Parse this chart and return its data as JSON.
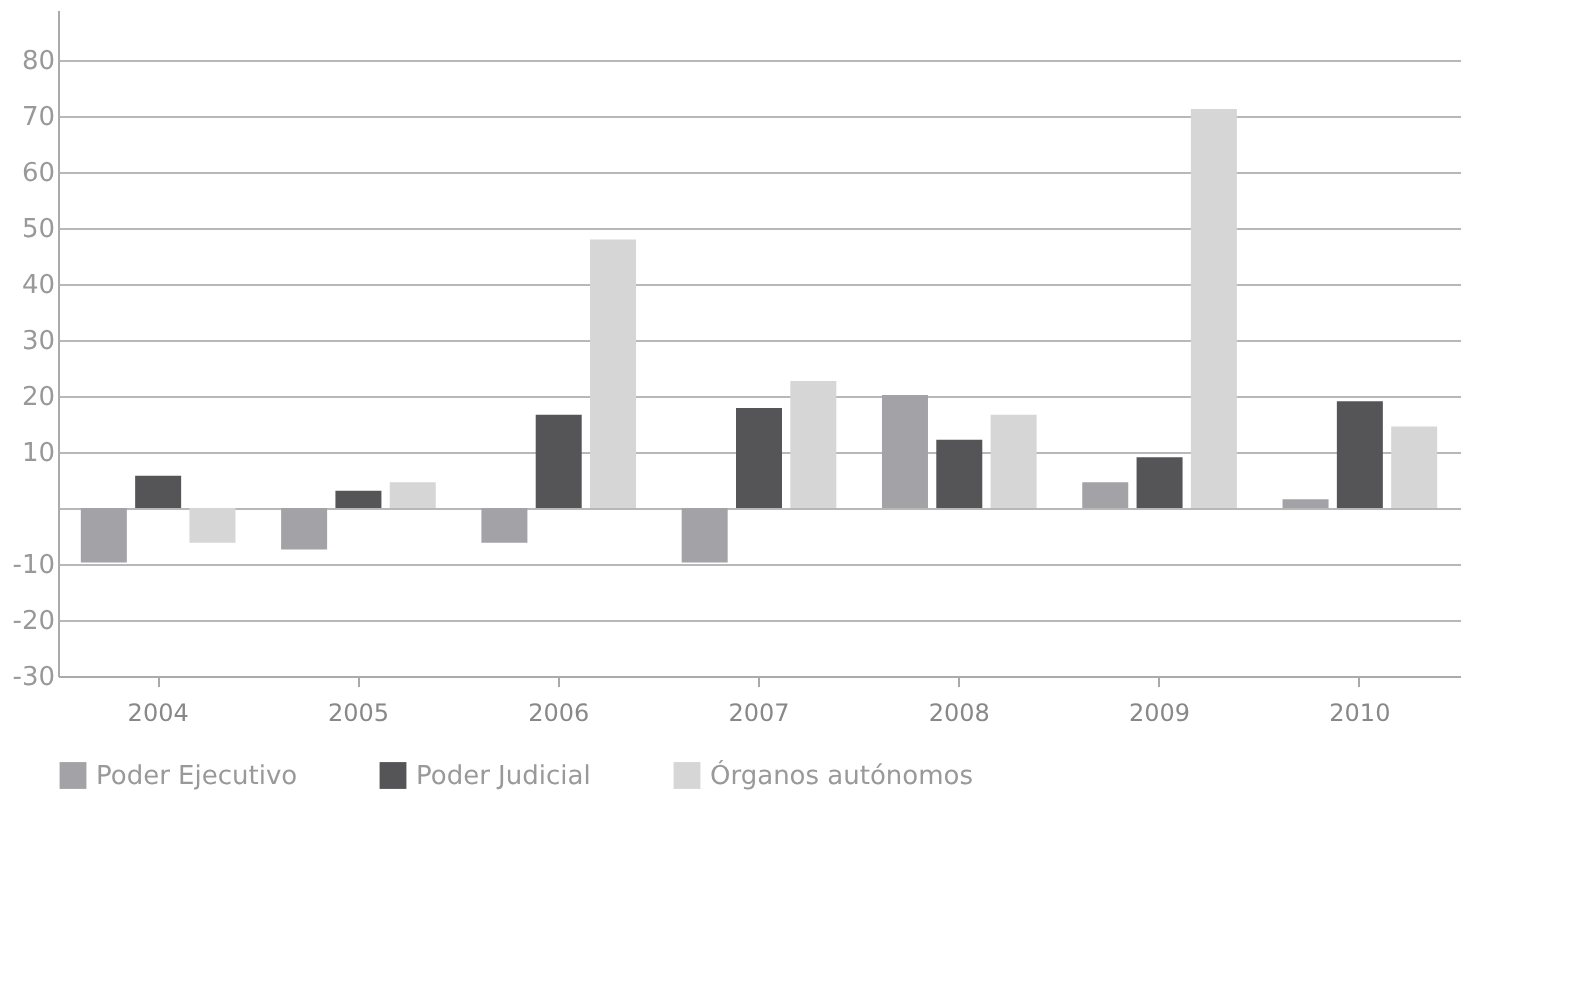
{
  "chart_data": {
    "type": "bar",
    "categories": [
      "2004",
      "2005",
      "2006",
      "2007",
      "2008",
      "2009",
      "2010"
    ],
    "series": [
      {
        "name": "Poder Ejecutivo",
        "color": "#a3a3a7",
        "values": [
          -9.7,
          -7.4,
          -6.2,
          -9.7,
          20.2,
          4.6,
          1.6
        ]
      },
      {
        "name": "Poder Judicial",
        "color": "#555557",
        "values": [
          5.8,
          3.1,
          16.7,
          17.9,
          12.2,
          9.1,
          19.1
        ]
      },
      {
        "name": "Órganos autónomos",
        "color": "#d6d6d6",
        "values": [
          -6.2,
          4.6,
          48.0,
          22.7,
          16.7,
          71.3,
          14.6
        ]
      }
    ],
    "ylim": [
      -30,
      89
    ],
    "yticks": [
      -30,
      -20,
      -10,
      {
        "value": 0,
        "label": null
      },
      10,
      20,
      30,
      40,
      50,
      60,
      70,
      80
    ],
    "grid": "y",
    "legend": "bottom"
  }
}
